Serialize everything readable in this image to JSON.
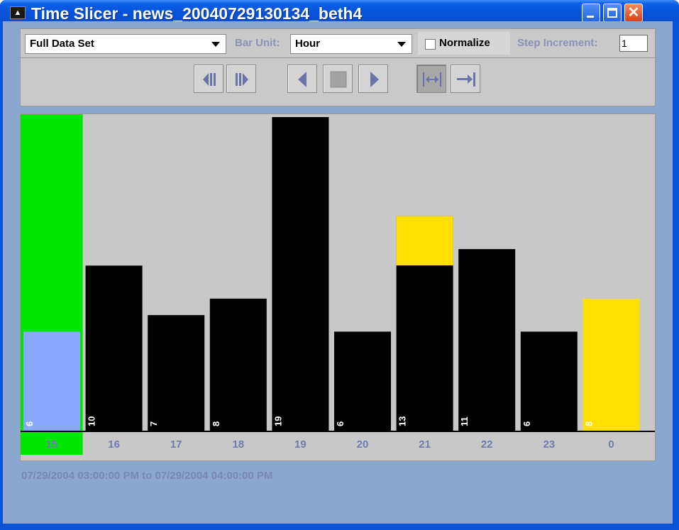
{
  "window": {
    "title": "Time Slicer - news_20040729130134_beth4",
    "app_icon": "app-icon"
  },
  "toolbar": {
    "dataset_select": "Full Data Set",
    "bar_unit_label": "Bar Unit:",
    "bar_unit_select": "Hour",
    "normalize_label": "Normalize",
    "normalize_checked": false,
    "step_increment_label": "Step Increment:",
    "step_increment_value": "1",
    "buttons": [
      "step-back-icon",
      "step-forward-icon",
      "play-reverse-icon",
      "stop-icon",
      "play-forward-icon",
      "fit-range-icon",
      "expand-to-end-icon"
    ]
  },
  "status": {
    "range_text": "07/29/2004 03:00:00 PM to 07/29/2004 04:00:00 PM"
  },
  "colors": {
    "selected": "#00e600",
    "selected_inner": "#8ba8ff",
    "highlight": "#ffe000",
    "bar": "#000000",
    "label": "#6f7bb0"
  },
  "chart_data": {
    "type": "bar",
    "categories": [
      "15",
      "16",
      "17",
      "18",
      "19",
      "20",
      "21",
      "22",
      "23",
      "0"
    ],
    "values": [
      6,
      10,
      7,
      8,
      19,
      6,
      13,
      11,
      6,
      8
    ],
    "selected_index": 0,
    "highlight_index": 9,
    "partial_highlight": {
      "index": 6,
      "fraction": 0.23
    },
    "ylim": [
      0,
      19
    ]
  }
}
